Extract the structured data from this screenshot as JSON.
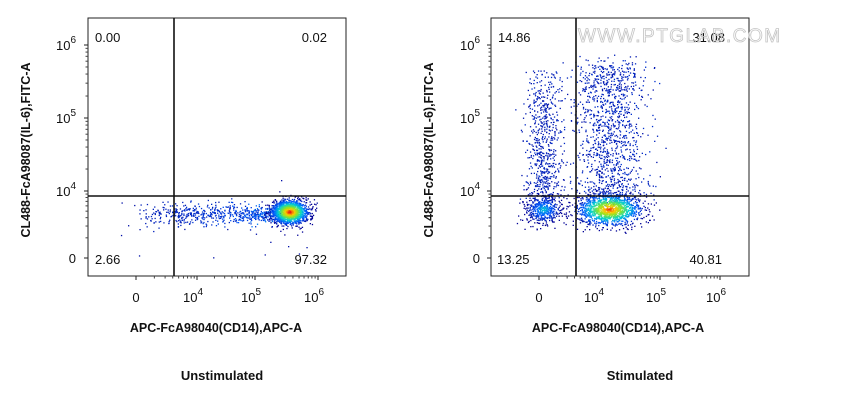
{
  "watermark": "WWW.PTGLAB.COM",
  "chart_data": [
    {
      "type": "scatter",
      "subtype": "flow-cytometry-density-plot",
      "caption": "Unstimulated",
      "xlabel": "APC-FcA98040(CD14),APC-A",
      "ylabel": "CL488-FcA98087(IL-6),FITC-A",
      "x_ticks": [
        {
          "base": "0",
          "exp": ""
        },
        {
          "base": "10",
          "exp": "4"
        },
        {
          "base": "10",
          "exp": "5"
        },
        {
          "base": "10",
          "exp": "6"
        }
      ],
      "y_ticks": [
        {
          "base": "0",
          "exp": ""
        },
        {
          "base": "10",
          "exp": "4"
        },
        {
          "base": "10",
          "exp": "5"
        },
        {
          "base": "10",
          "exp": "6"
        }
      ],
      "scale": "biexponential",
      "gate_x": 5500,
      "gate_y": 7000,
      "quadrants": {
        "upper_left": "0.00",
        "upper_right": "0.02",
        "lower_left": "2.66",
        "lower_right": "97.32"
      },
      "populations": [
        {
          "label": "main",
          "x_center": 350000,
          "y_center": 3000,
          "share": 0.93
        },
        {
          "label": "tail",
          "x_range": [
            200,
            300000
          ],
          "y_center": 2800,
          "share": 0.07
        }
      ]
    },
    {
      "type": "scatter",
      "subtype": "flow-cytometry-density-plot",
      "caption": "Stimulated",
      "xlabel": "APC-FcA98040(CD14),APC-A",
      "ylabel": "CL488-FcA98087(IL-6),FITC-A",
      "x_ticks": [
        {
          "base": "0",
          "exp": ""
        },
        {
          "base": "10",
          "exp": "4"
        },
        {
          "base": "10",
          "exp": "5"
        },
        {
          "base": "10",
          "exp": "6"
        }
      ],
      "y_ticks": [
        {
          "base": "0",
          "exp": ""
        },
        {
          "base": "10",
          "exp": "4"
        },
        {
          "base": "10",
          "exp": "5"
        },
        {
          "base": "10",
          "exp": "6"
        }
      ],
      "scale": "biexponential",
      "gate_x": 5500,
      "gate_y": 7000,
      "quadrants": {
        "upper_left": "14.86",
        "upper_right": "31.08",
        "lower_left": "13.25",
        "lower_right": "40.81"
      },
      "populations": [
        {
          "label": "lower-right cluster",
          "x_center": 15000,
          "y_center": 3500,
          "share": 0.41
        },
        {
          "label": "upper-right smear",
          "x_center": 15000,
          "y_range": [
            7000,
            500000
          ],
          "share": 0.31
        },
        {
          "label": "lower-left cluster",
          "x_center": 0,
          "y_center": 3500,
          "share": 0.13
        },
        {
          "label": "upper-left smear",
          "x_center": 0,
          "y_range": [
            7000,
            400000
          ],
          "share": 0.15
        }
      ]
    }
  ]
}
